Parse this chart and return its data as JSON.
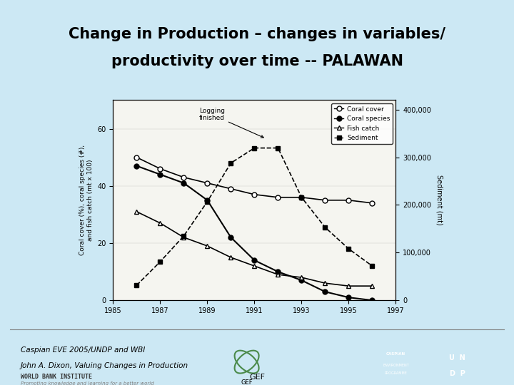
{
  "title_line1": "Change in Production – changes in variables/",
  "title_line2": "productivity over time -- PALAWAN",
  "bg_color": "#cce8f4",
  "chart_bg": "#f5f5f0",
  "years": [
    1986,
    1987,
    1988,
    1989,
    1990,
    1991,
    1992,
    1993,
    1994,
    1995,
    1996
  ],
  "coral_cover": [
    50,
    46,
    43,
    41,
    39,
    37,
    36,
    36,
    35,
    35,
    34
  ],
  "coral_species": [
    47,
    44,
    41,
    35,
    22,
    14,
    10,
    7,
    3,
    1,
    0
  ],
  "fish_catch": [
    31,
    27,
    22,
    19,
    15,
    12,
    9,
    8,
    6,
    5,
    5
  ],
  "sediment": [
    35000,
    90000,
    150000,
    230000,
    320000,
    355000,
    355000,
    240000,
    170000,
    120000,
    80000
  ],
  "ylim_left": [
    0,
    70
  ],
  "ylim_right": [
    0,
    420000
  ],
  "yticks_left": [
    0,
    20,
    40,
    60
  ],
  "yticks_right": [
    0,
    100000,
    200000,
    300000,
    400000
  ],
  "xticks": [
    1985,
    1987,
    1989,
    1991,
    1993,
    1995,
    1997
  ],
  "ylabel_left": "Coral cover (%), coral species (#),\nand fish catch (mt x 100)",
  "ylabel_right": "Sediment (mt)",
  "xlabel": "",
  "logging_finished_x": 1991.5,
  "logging_finished_y": 60,
  "footer_text1": "Caspian EVE 2005/UNDP and WBI",
  "footer_text2": "John A. Dixon, Valuing Changes in Production"
}
